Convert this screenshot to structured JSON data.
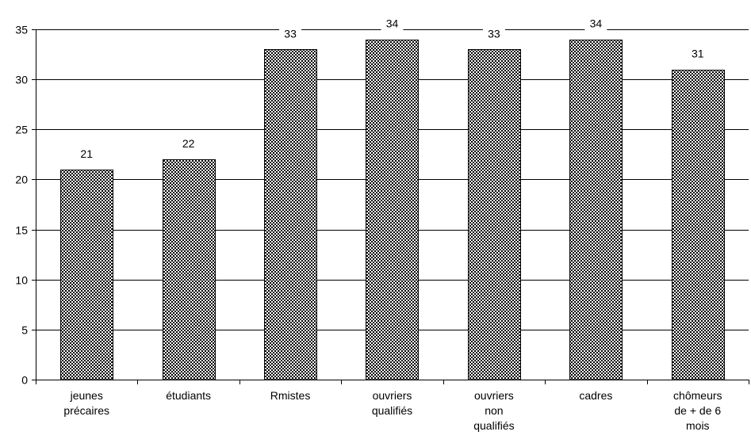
{
  "chart_data": {
    "type": "bar",
    "categories": [
      [
        "jeunes",
        "précaires"
      ],
      [
        "étudiants"
      ],
      [
        "Rmistes"
      ],
      [
        "ouvriers",
        "qualifiés"
      ],
      [
        "ouvriers",
        "non",
        "qualifiés"
      ],
      [
        "cadres"
      ],
      [
        "chômeurs",
        "de + de 6",
        "mois"
      ]
    ],
    "values": [
      21,
      22,
      33,
      34,
      33,
      34,
      31
    ],
    "data_labels": [
      "21",
      "22",
      "33",
      "34",
      "33",
      "34",
      "31"
    ],
    "ylim": [
      0,
      35
    ],
    "yticks": [
      0,
      5,
      10,
      15,
      20,
      25,
      30,
      35
    ],
    "title": "",
    "xlabel": "",
    "ylabel": "",
    "grid": true,
    "legend": "none",
    "bar_pattern": "checkerboard",
    "colors": {
      "bar_dark": "#000000",
      "bar_light": "#ffffff",
      "grid": "#000000",
      "axis": "#000000"
    }
  }
}
